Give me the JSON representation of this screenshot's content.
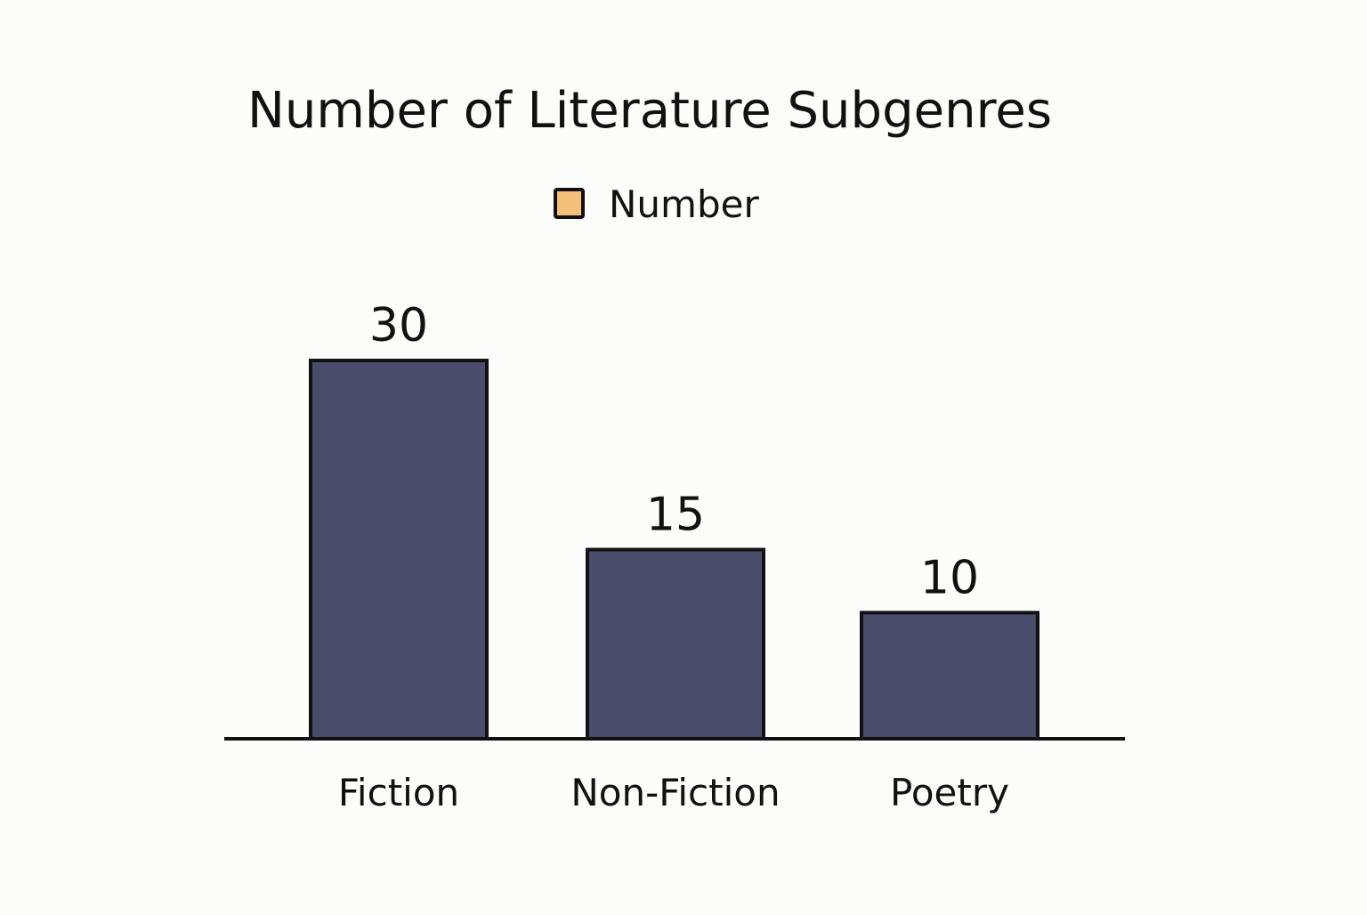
{
  "chart_data": {
    "type": "bar",
    "title": "Number of Literature Subgenres",
    "xlabel": "",
    "ylabel": "",
    "categories": [
      "Fiction",
      "Non-Fiction",
      "Poetry"
    ],
    "series": [
      {
        "name": "Number",
        "values": [
          30,
          15,
          10
        ],
        "color": "#4a4c6c",
        "legend_swatch_color": "#f5c07a"
      }
    ],
    "data_labels": [
      "30",
      "15",
      "10"
    ],
    "ylim": [
      0,
      36
    ],
    "grid": false,
    "legend_position": "top-center",
    "outline_color": "#111111",
    "background": "#fcfcfa"
  }
}
